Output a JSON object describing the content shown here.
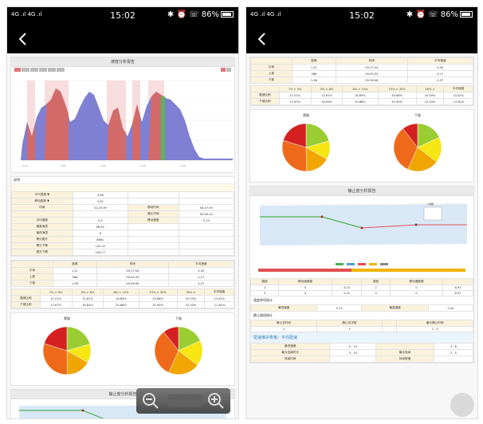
{
  "status": {
    "signal": "4G .ıl 4G .ıl",
    "time": "15:02",
    "battery": "86%"
  },
  "left": {
    "slope_title": "坡度分析报告",
    "stationary_title": "静止度分析报告",
    "section_label": "说明",
    "summary_rows": [
      {
        "k": "GPS里程 ▼",
        "v": "3.58"
      },
      {
        "k": "移动距离 ▼",
        "v": "3.62"
      },
      {
        "k": "时间",
        "v": "01:29:39",
        "k2": "移动时间",
        "v2": "00:47:29"
      },
      {
        "k": "",
        "v": "",
        "k2": "静止时间",
        "v2": "00:40:10"
      },
      {
        "k": "平均速度",
        "v": "2.4",
        "k2": "移动速度",
        "v2": "5.19"
      },
      {
        "k": "最高海拔",
        "v": "96.42"
      },
      {
        "k": "最低海拔",
        "v": "6"
      },
      {
        "k": "累计爬升",
        "v": "8861"
      },
      {
        "k": "累计下降",
        "v": "142.22"
      },
      {
        "k": "爬升下降",
        "v": "218.77"
      }
    ],
    "grade_header": [
      "",
      "距离",
      "时间",
      "平均速度"
    ],
    "grade_rows": [
      [
        "平地",
        "1.21",
        "00:17:54",
        "4.05"
      ],
      [
        "上坡",
        "386",
        "00:05:33",
        "4.17"
      ],
      [
        "下坡",
        "1.98",
        "00:26:06",
        "4.57"
      ]
    ],
    "pct_header": [
      "",
      "7% > 0%",
      "0% > 8%",
      "8% > 15%",
      "15% > 30%",
      "30% >"
    ],
    "pct_rows": [
      [
        "爬坡比例",
        "21.01%",
        "12.81%",
        "16.89%",
        "30.68%",
        "20.59%"
      ],
      [
        "下坡比例",
        "17.67%",
        "16.83%",
        "20.88%",
        "31.90%",
        "10.33%"
      ]
    ],
    "avg_label": "平均坡度",
    "avg_rows": [
      [
        "爬坡",
        "13.42%"
      ],
      [
        "下坡",
        "-11.61%"
      ]
    ],
    "pie_labels": [
      "爬坡",
      "下坡"
    ]
  },
  "right": {
    "grade_rows": [
      [
        "平地",
        "1.21",
        "00:17:54",
        "4.05"
      ],
      [
        "上坡",
        "386",
        "00:05:33",
        "4.17"
      ],
      [
        "下坡",
        "1.98",
        "00:26:06",
        "4.57"
      ]
    ],
    "pct_rows": [
      [
        "爬坡比例",
        "21.01%",
        "12.81%",
        "16.89%",
        "30.68%",
        "20.59%"
      ],
      [
        "下坡比例",
        "17.67%",
        "16.83%",
        "20.88%",
        "31.90%",
        "10.33%"
      ]
    ],
    "avg_rows": [
      [
        "爬坡",
        "13.42%"
      ],
      [
        "下坡",
        "-11.61%"
      ]
    ],
    "pie_labels": [
      "爬坡",
      "下坡"
    ],
    "stationary_title": "静止度分析报告",
    "tooltip_text": "1次数",
    "route_table_header": [
      "路段",
      "移动速度慢",
      "",
      "路段",
      "移动速度慢"
    ],
    "route_rows": [
      [
        "1",
        "0",
        "5.22",
        "2",
        "0",
        "8.97"
      ],
      [
        "3",
        "0",
        "5.22",
        "4",
        "0",
        "6.57"
      ]
    ],
    "stop_label": "速度单项统计",
    "stop_rows": [
      [
        "最低速度",
        "0.22",
        "最高速度",
        "2.42"
      ]
    ],
    "stop_detail_label": "静止路段统计",
    "stop_detail_header": [
      "静止总时间",
      "静止总次数",
      "",
      "最长静止时间"
    ],
    "stop_detail_row": [
      "4",
      "4",
      "",
      "2 - 5"
    ],
    "speed_title": "配速维护表格：平均配速",
    "bottom_rows": [
      [
        "最低速度",
        "5 - 10",
        "",
        "3 - 6"
      ],
      [
        "最大连续时长",
        "3 - 10",
        "最大连续",
        "2 - 5"
      ],
      [
        "持续时间",
        "",
        "持续配速",
        ""
      ]
    ]
  },
  "colors": {
    "area_fill": "#7f7fd3",
    "area_red": "#d36a6a",
    "highlight": "#f2c6c6",
    "green_band": "#5fb35f"
  }
}
